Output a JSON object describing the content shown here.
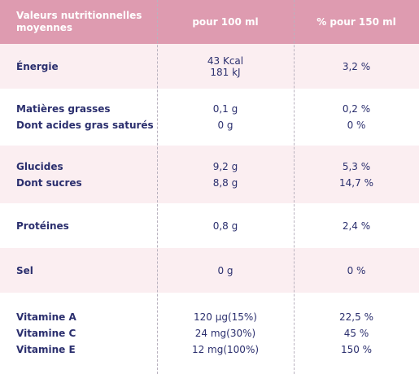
{
  "header": {
    "col1": "Valeurs nutritionnelles moyennes",
    "col2": "pour 100 ml",
    "col3": "% pour 150 ml"
  },
  "rows": [
    {
      "labels": [
        "Énergie"
      ],
      "per100": [
        "43 Kcal",
        "181 kJ"
      ],
      "per150": [
        "3,2 %"
      ]
    },
    {
      "labels": [
        "Matières grasses",
        "Dont acides gras saturés"
      ],
      "per100": [
        "0,1 g",
        "0 g"
      ],
      "per150": [
        "0,2 %",
        "0 %"
      ]
    },
    {
      "labels": [
        "Glucides",
        "Dont sucres"
      ],
      "per100": [
        "9,2 g",
        "8,8 g"
      ],
      "per150": [
        "5,3 %",
        "14,7 %"
      ]
    },
    {
      "labels": [
        "Protéines"
      ],
      "per100": [
        "0,8 g"
      ],
      "per150": [
        "2,4 %"
      ]
    },
    {
      "labels": [
        "Sel"
      ],
      "per100": [
        "0 g"
      ],
      "per150": [
        "0 %"
      ]
    },
    {
      "labels": [
        "Vitamine A",
        "Vitamine C",
        "Vitamine E"
      ],
      "per100": [
        "120 µg(15%)",
        "24 mg(30%)",
        "12 mg(100%)"
      ],
      "per150": [
        "22,5 %",
        "45 %",
        "150 %"
      ]
    }
  ],
  "colors": {
    "header_bg": "#de9bb0",
    "row_pink": "#fbeef1",
    "row_white": "#ffffff",
    "text": "#2b2f6e"
  }
}
